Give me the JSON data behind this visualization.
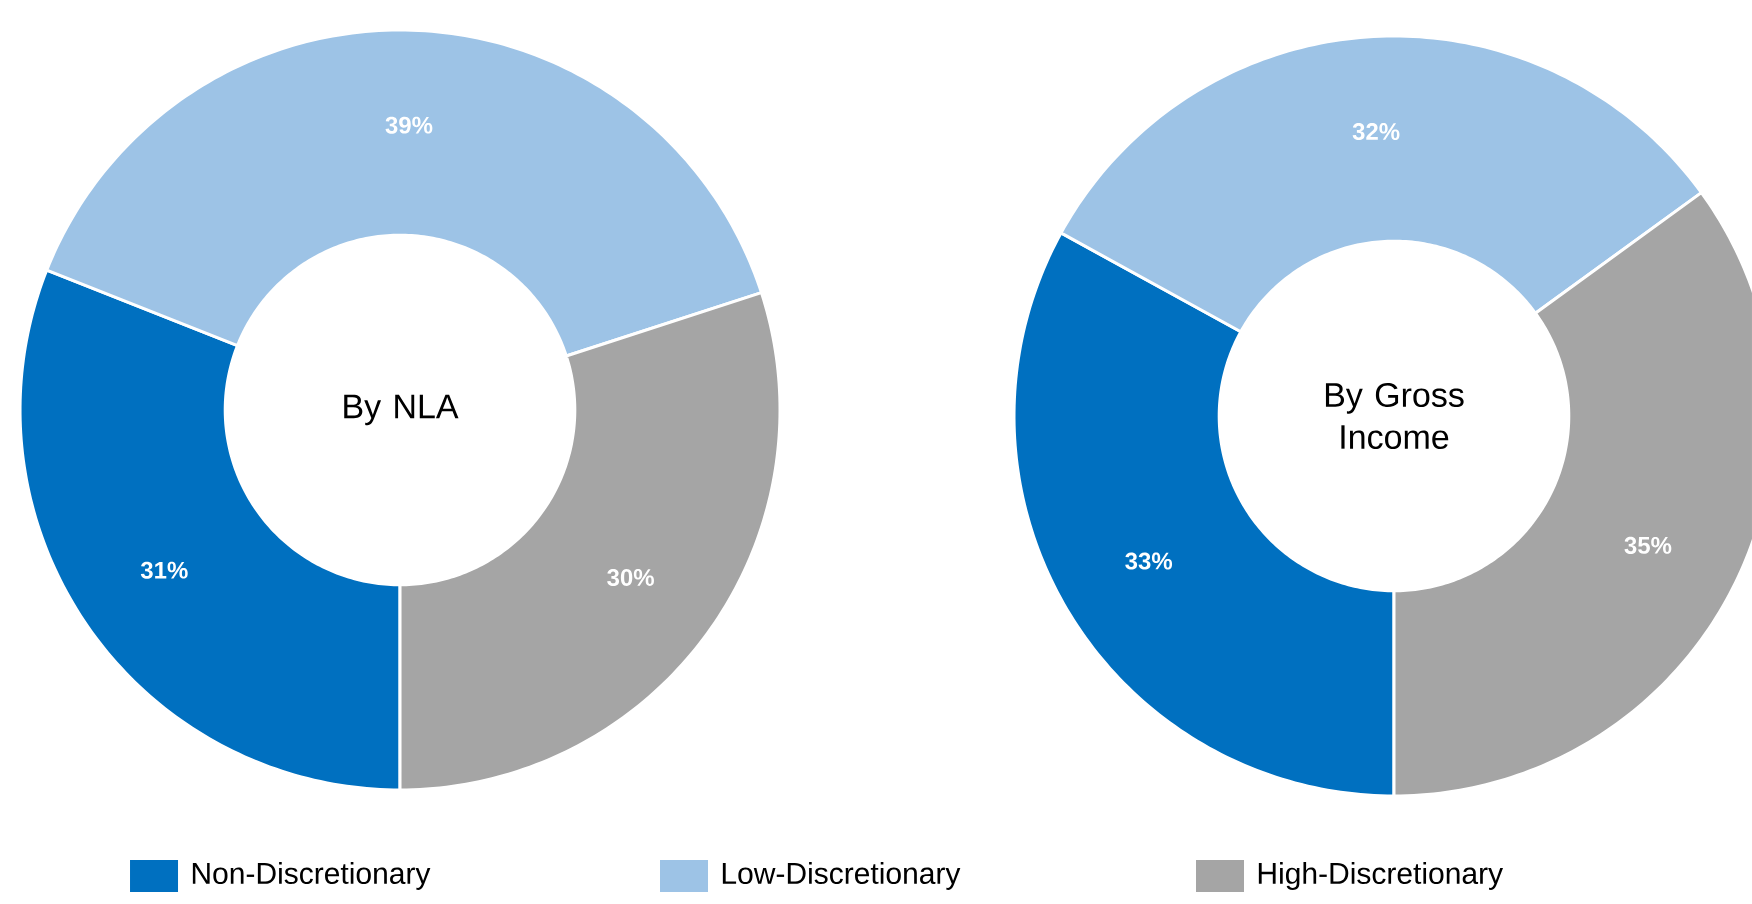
{
  "chart_data": [
    {
      "type": "donut",
      "title": "By NLA",
      "categories": [
        "Non-Discretionary",
        "Low-Discretionary",
        "High-Discretionary"
      ],
      "values": [
        31,
        39,
        30
      ],
      "colors": [
        "#0070c0",
        "#9dc3e6",
        "#a5a5a5"
      ],
      "value_labels": [
        "31%",
        "39%",
        "30%"
      ],
      "legend": "bottom"
    },
    {
      "type": "donut",
      "title": "By Gross Income",
      "categories": [
        null,
        null,
        null
      ],
      "values": [
        33,
        32,
        35
      ],
      "colors": [
        "#0070c0",
        "#9dc3e6",
        "#a5a5a5"
      ],
      "value_labels": [
        "33%",
        "32%",
        "35%"
      ]
    }
  ]
}
